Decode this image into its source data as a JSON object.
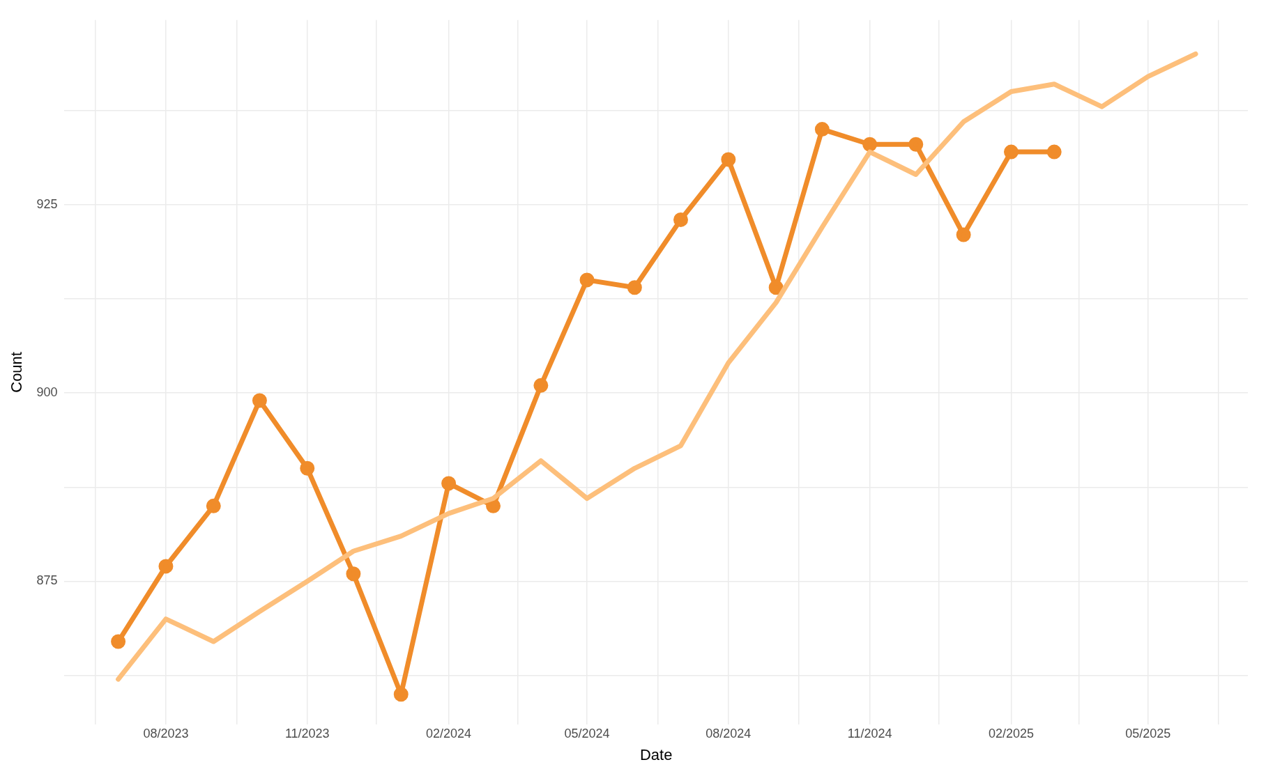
{
  "chart_data": {
    "type": "line",
    "xlabel": "Date",
    "ylabel": "Count",
    "x": [
      "2023-07",
      "2023-08",
      "2023-09",
      "2023-10",
      "2023-11",
      "2023-12",
      "2024-01",
      "2024-02",
      "2024-03",
      "2024-04",
      "2024-05",
      "2024-06",
      "2024-07",
      "2024-08",
      "2024-09",
      "2024-10",
      "2024-11",
      "2024-12",
      "2025-01",
      "2025-02",
      "2025-03",
      "2025-04",
      "2025-05",
      "2025-06"
    ],
    "series": [
      {
        "color": "#fdbf7b",
        "marker": "none",
        "values": [
          862,
          870,
          867,
          871,
          875,
          879,
          881,
          884,
          886,
          891,
          886,
          890,
          893,
          904,
          912,
          922,
          932,
          929,
          936,
          940,
          941,
          938,
          942,
          945
        ]
      },
      {
        "color": "#f08c2a",
        "marker": "circle",
        "values": [
          867,
          877,
          885,
          899,
          890,
          876,
          860,
          888,
          885,
          901,
          915,
          914,
          923,
          931,
          914,
          935,
          933,
          933,
          921,
          932,
          932,
          null,
          null,
          null
        ]
      }
    ],
    "xlim": [
      "2023-05-27",
      "2025-07-05"
    ],
    "xticks": [
      {
        "value": "2023-06-16",
        "label": null
      },
      {
        "value": "2023-08",
        "label": "08/2023"
      },
      {
        "value": "2023-09-16",
        "label": null
      },
      {
        "value": "2023-11",
        "label": "11/2023"
      },
      {
        "value": "2023-12-16",
        "label": null
      },
      {
        "value": "2024-02",
        "label": "02/2024"
      },
      {
        "value": "2024-03-17",
        "label": null
      },
      {
        "value": "2024-05",
        "label": "05/2024"
      },
      {
        "value": "2024-06-16",
        "label": null
      },
      {
        "value": "2024-08",
        "label": "08/2024"
      },
      {
        "value": "2024-09-16",
        "label": null
      },
      {
        "value": "2024-11",
        "label": "11/2024"
      },
      {
        "value": "2024-12-16",
        "label": null
      },
      {
        "value": "2025-02",
        "label": "02/2025"
      },
      {
        "value": "2025-03-17",
        "label": null
      },
      {
        "value": "2025-05",
        "label": "05/2025"
      },
      {
        "value": "2025-06-16",
        "label": null
      }
    ],
    "ylim": [
      856,
      949.5
    ],
    "yticks": [
      {
        "value": 862.5,
        "label": null
      },
      875,
      {
        "value": 887.5,
        "label": null
      },
      900,
      {
        "value": 912.5,
        "label": null
      },
      925,
      {
        "value": 937.5,
        "label": null
      }
    ],
    "grid": true,
    "legend": false,
    "line_style": "solid"
  }
}
